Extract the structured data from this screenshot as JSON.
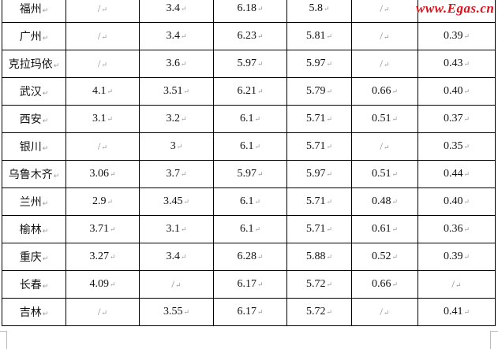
{
  "table": {
    "rows": [
      [
        "福州",
        "/",
        "3.4",
        "6.18",
        "5.8",
        "/",
        ""
      ],
      [
        "广州",
        "/",
        "3.4",
        "6.23",
        "5.81",
        "/",
        "0.39"
      ],
      [
        "克拉玛依",
        "/",
        "3.6",
        "5.97",
        "5.97",
        "/",
        "0.43"
      ],
      [
        "武汉",
        "4.1",
        "3.51",
        "6.21",
        "5.79",
        "0.66",
        "0.40"
      ],
      [
        "西安",
        "3.1",
        "3.2",
        "6.1",
        "5.71",
        "0.51",
        "0.37"
      ],
      [
        "银川",
        "/",
        "3",
        "6.1",
        "5.71",
        "/",
        "0.35"
      ],
      [
        "乌鲁木齐",
        "3.06",
        "3.7",
        "5.97",
        "5.97",
        "0.51",
        "0.44"
      ],
      [
        "兰州",
        "2.9",
        "3.45",
        "6.1",
        "5.71",
        "0.48",
        "0.40"
      ],
      [
        "榆林",
        "3.71",
        "3.1",
        "6.1",
        "5.71",
        "0.61",
        "0.36"
      ],
      [
        "重庆",
        "3.27",
        "3.4",
        "6.28",
        "5.88",
        "0.52",
        "0.39"
      ],
      [
        "长春",
        "4.09",
        "/",
        "6.17",
        "5.72",
        "0.66",
        "/"
      ],
      [
        "吉林",
        "/",
        "3.55",
        "6.17",
        "5.72",
        "/",
        "0.41"
      ]
    ],
    "paragraph_mark": "↵"
  },
  "watermark": "www.Egas.cn",
  "colors": {
    "watermark": "#e0101a",
    "border": "#000000"
  }
}
